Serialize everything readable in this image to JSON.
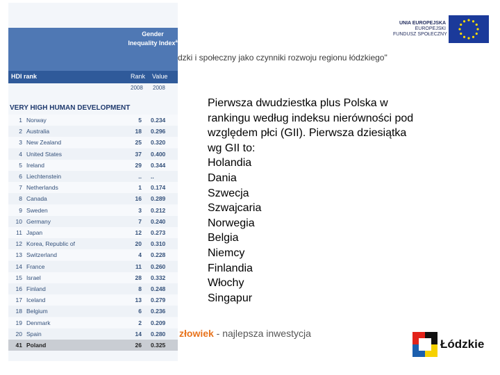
{
  "eu_logo": {
    "line1": "UNIA EUROPEJSKA",
    "line2": "EUROPEJSKI",
    "line3": "FUNDUSZ SPOŁECZNY"
  },
  "header": {
    "title": "dzki i społeczny jako czynniki rozwoju regionu łódzkiego\""
  },
  "table": {
    "index_title": "Gender Inequality Index",
    "index_note": "a",
    "hdi_rank": "HDI rank",
    "rank": "Rank",
    "value": "Value",
    "year_rank": "2008",
    "year_value": "2008",
    "group": "VERY HIGH HUMAN DEVELOPMENT",
    "rows": [
      [
        "1",
        "Norway",
        "5",
        "0.234"
      ],
      [
        "2",
        "Australia",
        "18",
        "0.296"
      ],
      [
        "3",
        "New Zealand",
        "25",
        "0.320"
      ],
      [
        "4",
        "United States",
        "37",
        "0.400"
      ],
      [
        "5",
        "Ireland",
        "29",
        "0.344"
      ],
      [
        "6",
        "Liechtenstein",
        "..",
        ".."
      ],
      [
        "7",
        "Netherlands",
        "1",
        "0.174"
      ],
      [
        "8",
        "Canada",
        "16",
        "0.289"
      ],
      [
        "9",
        "Sweden",
        "3",
        "0.212"
      ],
      [
        "10",
        "Germany",
        "7",
        "0.240"
      ],
      [
        "11",
        "Japan",
        "12",
        "0.273"
      ],
      [
        "12",
        "Korea, Republic of",
        "20",
        "0.310"
      ],
      [
        "13",
        "Switzerland",
        "4",
        "0.228"
      ],
      [
        "14",
        "France",
        "11",
        "0.260"
      ],
      [
        "15",
        "Israel",
        "28",
        "0.332"
      ],
      [
        "16",
        "Finland",
        "8",
        "0.248"
      ],
      [
        "17",
        "Iceland",
        "13",
        "0.279"
      ],
      [
        "18",
        "Belgium",
        "6",
        "0.236"
      ],
      [
        "19",
        "Denmark",
        "2",
        "0.209"
      ],
      [
        "20",
        "Spain",
        "14",
        "0.280"
      ],
      [
        "41",
        "Poland",
        "26",
        "0.325"
      ]
    ]
  },
  "body": {
    "intro": [
      "Pierwsza dwudziestka plus Polska w",
      "rankingu według indeksu nierówności pod",
      "względem płci (GII). Pierwsza dziesiątka",
      "wg GII to:"
    ],
    "list": [
      "Holandia",
      "Dania",
      "Szwecja",
      "Szwajcaria",
      "Norwegia",
      "Belgia",
      "Niemcy",
      "Finlandia",
      "Włochy",
      "Singapur"
    ]
  },
  "footer": {
    "slogan_highlight": "złowiek",
    "slogan_rest": " - najlepsza inwestycja",
    "region_logo": "Łódzkie"
  }
}
